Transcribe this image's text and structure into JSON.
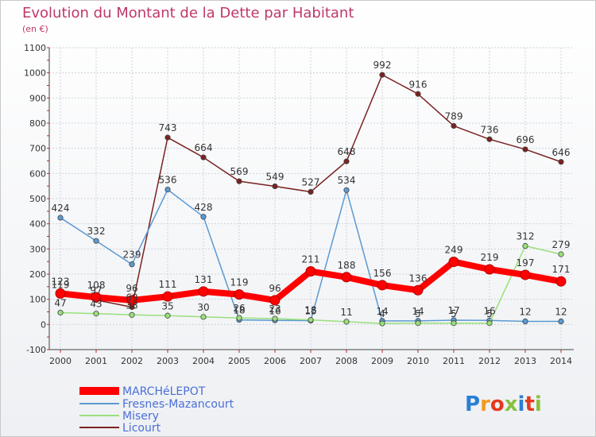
{
  "chart_data": {
    "type": "line",
    "title": "Evolution du Montant de la Dette par Habitant",
    "subtitle": "(en €)",
    "x": [
      "2000",
      "2001",
      "2002",
      "2003",
      "2004",
      "2005",
      "2006",
      "2007",
      "2008",
      "2009",
      "2010",
      "2011",
      "2012",
      "2013",
      "2014"
    ],
    "ylim": [
      -100,
      1100
    ],
    "yticks": [
      "-100",
      "0",
      "100",
      "200",
      "300",
      "400",
      "500",
      "600",
      "700",
      "800",
      "900",
      "1000",
      "1100"
    ],
    "grid": true,
    "legend_position": "bottom-left",
    "series": [
      {
        "name": "MARCHéLEPOT",
        "color": "#ff0000",
        "emphasis": true,
        "values": [
          123,
          108,
          96,
          111,
          131,
          119,
          96,
          211,
          188,
          156,
          136,
          249,
          219,
          197,
          171
        ],
        "labels": [
          "123",
          "108",
          "96",
          "111",
          "131",
          "119",
          "96",
          "211",
          "188",
          "156",
          "136",
          "249",
          "219",
          "197",
          "171"
        ]
      },
      {
        "name": "Fresnes-Mazancourt",
        "color": "#5a9ad2",
        "values": [
          424,
          332,
          239,
          536,
          428,
          18,
          16,
          15,
          534,
          14,
          14,
          17,
          16,
          12,
          12
        ],
        "labels": [
          "424",
          "332",
          "239",
          "536",
          "428",
          "18",
          "16",
          "15",
          "534",
          "14",
          "14",
          "17",
          "16",
          "12",
          "12"
        ]
      },
      {
        "name": "Misery",
        "color": "#99e07a",
        "values": [
          47,
          43,
          38,
          35,
          30,
          26,
          23,
          18,
          11,
          4,
          5,
          5,
          5,
          312,
          279
        ],
        "labels": [
          "47",
          "43",
          "38",
          "35",
          "30",
          "26",
          "23",
          "18",
          "11",
          "4",
          "5",
          "5",
          "5",
          "312",
          "279"
        ]
      },
      {
        "name": "Licourt",
        "color": "#7a2222",
        "values": [
          119,
          97,
          69,
          743,
          664,
          569,
          549,
          527,
          648,
          992,
          916,
          789,
          736,
          696,
          646
        ],
        "labels": [
          "119",
          "97",
          "69",
          "743",
          "664",
          "569",
          "549",
          "527",
          "648",
          "992",
          "916",
          "789",
          "736",
          "696",
          "646"
        ]
      }
    ]
  },
  "brand": {
    "logo_text": "Proxiti"
  }
}
